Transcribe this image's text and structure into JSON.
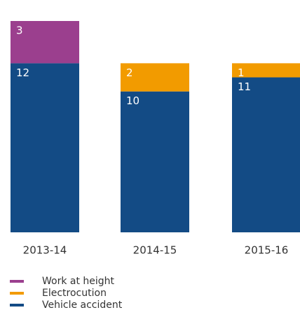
{
  "chart_data": {
    "type": "bar",
    "stacked": true,
    "categories": [
      "2013-14",
      "2014-15",
      "2015-16"
    ],
    "series": [
      {
        "name": "Work at height",
        "color": "#9b3f8e",
        "values": [
          3,
          null,
          null
        ]
      },
      {
        "name": "Electrocution",
        "color": "#f29b00",
        "values": [
          null,
          2,
          1
        ]
      },
      {
        "name": "Vehicle accident",
        "color": "#134b85",
        "values": [
          12,
          10,
          11
        ]
      }
    ],
    "ylim": [
      0,
      15
    ]
  }
}
